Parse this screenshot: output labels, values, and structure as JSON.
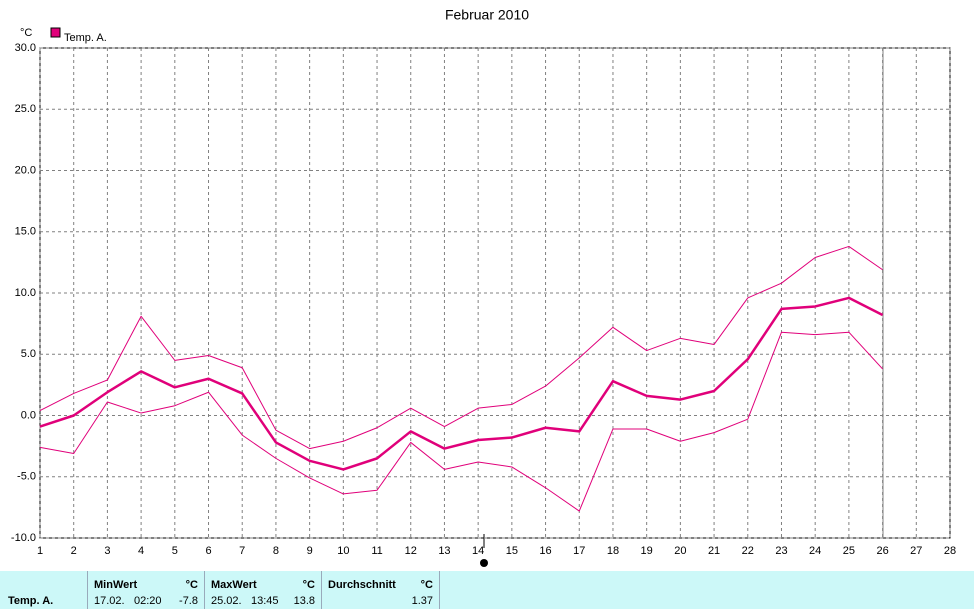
{
  "chart_data": {
    "type": "line",
    "title": "Februar 2010",
    "y_unit": "°C",
    "x": [
      1,
      2,
      3,
      4,
      5,
      6,
      7,
      8,
      9,
      10,
      11,
      12,
      13,
      14,
      15,
      16,
      17,
      18,
      19,
      20,
      21,
      22,
      23,
      24,
      25,
      26
    ],
    "series": [
      {
        "name": "Temp. A.",
        "color": "#e0007a",
        "values": [
          -0.9,
          0.0,
          1.9,
          3.6,
          2.3,
          3.0,
          1.8,
          -2.2,
          -3.7,
          -4.4,
          -3.5,
          -1.3,
          -2.7,
          -2.0,
          -1.8,
          -1.0,
          -1.3,
          2.8,
          1.6,
          1.3,
          2.0,
          4.6,
          8.7,
          8.9,
          9.6,
          8.2
        ]
      },
      {
        "color": "#e0007a",
        "values": [
          0.4,
          1.8,
          2.9,
          8.1,
          4.5,
          4.9,
          3.9,
          -1.2,
          -2.7,
          -2.1,
          -1.0,
          0.6,
          -0.9,
          0.6,
          0.9,
          2.4,
          4.7,
          7.2,
          5.3,
          6.3,
          5.8,
          9.6,
          10.8,
          12.9,
          13.8,
          11.9
        ]
      },
      {
        "color": "#e0007a",
        "values": [
          -2.6,
          -3.1,
          1.1,
          0.2,
          0.8,
          1.9,
          -1.6,
          -3.5,
          -5.1,
          -6.4,
          -6.1,
          -2.2,
          -4.4,
          -3.8,
          -4.2,
          -5.9,
          -7.8,
          -1.1,
          -1.1,
          -2.1,
          -1.4,
          -0.3,
          6.8,
          6.6,
          6.8,
          3.8
        ]
      }
    ],
    "xlim": [
      1,
      28
    ],
    "xticks": [
      1,
      2,
      3,
      4,
      5,
      6,
      7,
      8,
      9,
      10,
      11,
      12,
      13,
      14,
      15,
      16,
      17,
      18,
      19,
      20,
      21,
      22,
      23,
      24,
      25,
      26,
      27,
      28
    ],
    "ylim": [
      -10,
      30
    ],
    "yticks": [
      {
        "value": -10,
        "label": "-10.0"
      },
      {
        "value": -5,
        "label": "-5.0"
      },
      {
        "value": 0,
        "label": "0.0"
      },
      {
        "value": 5,
        "label": "5.0"
      },
      {
        "value": 10,
        "label": "10.0"
      },
      {
        "value": 15,
        "label": "15.0"
      },
      {
        "value": 20,
        "label": "20.0"
      },
      {
        "value": 25,
        "label": "25.0"
      },
      {
        "value": 30,
        "label": "30.0"
      }
    ],
    "grid": true,
    "legend": "top-left"
  },
  "stats_panel": {
    "row_label": "Temp. A.",
    "min": {
      "header": "MinWert",
      "unit": "°C",
      "date": "17.02.",
      "time": "02:20",
      "value": -7.8
    },
    "max": {
      "header": "MaxWert",
      "unit": "°C",
      "date": "25.02.",
      "time": "13:45",
      "value": 13.8
    },
    "avg": {
      "header": "Durchschnitt",
      "unit": "°C",
      "value": 1.37
    }
  }
}
